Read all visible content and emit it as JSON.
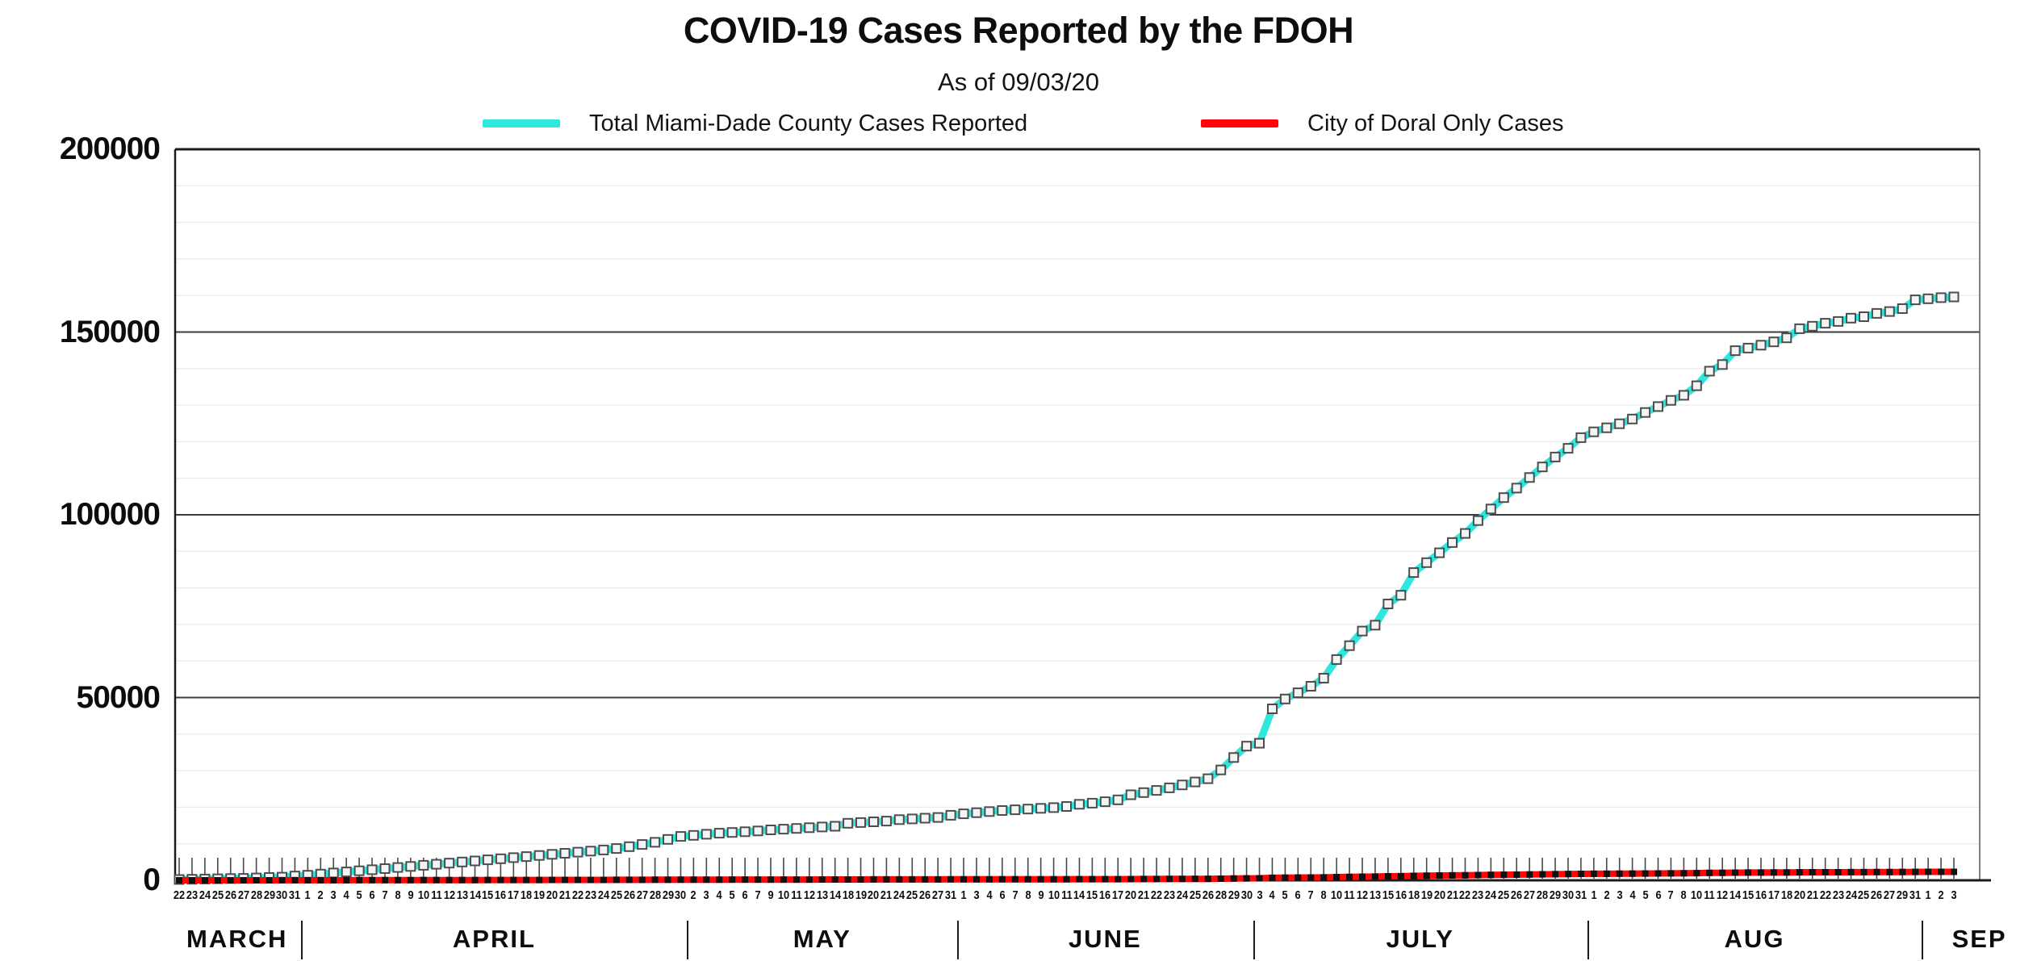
{
  "title": "COVID-19 Cases Reported by the FDOH",
  "subtitle": "As of 09/03/20",
  "legend": [
    {
      "label": "Total Miami-Dade County Cases Reported",
      "color": "#2ee8de"
    },
    {
      "label": "City of Doral Only Cases",
      "color": "#ff0505"
    }
  ],
  "chart_data": {
    "type": "line",
    "title": "COVID-19 Cases Reported by the FDOH",
    "subtitle": "As of 09/03/20",
    "xlabel": "",
    "ylabel": "",
    "ylim": [
      0,
      200000
    ],
    "yticks": [
      0,
      50000,
      100000,
      150000,
      200000
    ],
    "minor_grid_step": 10000,
    "grid": "on",
    "legend_position": "top",
    "months": [
      {
        "label": "MARCH",
        "days": [
          22,
          23,
          24,
          25,
          26,
          27,
          28,
          29,
          30,
          31
        ]
      },
      {
        "label": "APRIL",
        "days": [
          1,
          2,
          3,
          4,
          5,
          6,
          7,
          8,
          9,
          10,
          11,
          12,
          13,
          14,
          15,
          16,
          17,
          18,
          19,
          20,
          21,
          22,
          23,
          24,
          25,
          26,
          27,
          28,
          29,
          30
        ]
      },
      {
        "label": "MAY",
        "days": [
          2,
          3,
          4,
          5,
          6,
          7,
          9,
          10,
          11,
          12,
          13,
          14,
          18,
          19,
          20,
          21,
          24,
          25,
          26,
          27,
          31
        ]
      },
      {
        "label": "JUNE",
        "days": [
          1,
          3,
          4,
          6,
          7,
          8,
          9,
          10,
          11,
          14,
          15,
          16,
          17,
          20,
          21,
          22,
          23,
          24,
          25,
          26,
          28,
          29,
          30
        ]
      },
      {
        "label": "JULY",
        "days": [
          3,
          4,
          5,
          6,
          7,
          8,
          10,
          11,
          12,
          13,
          15,
          16,
          18,
          19,
          20,
          21,
          22,
          23,
          24,
          25,
          26,
          27,
          28,
          29,
          30,
          31
        ]
      },
      {
        "label": "AUG",
        "days": [
          1,
          2,
          3,
          4,
          5,
          6,
          7,
          8,
          10,
          11,
          12,
          14,
          15,
          16,
          17,
          18,
          20,
          21,
          22,
          23,
          24,
          25,
          26,
          27,
          29,
          31
        ]
      },
      {
        "label": "SEP",
        "days": [
          1,
          2,
          3
        ]
      }
    ],
    "series": [
      {
        "name": "Total Miami-Dade County Cases Reported",
        "color": "#2ee8de",
        "line_width": 9,
        "marker": "square",
        "marker_size": 11,
        "marker_fill": "#f4f4f4",
        "marker_stroke": "#4d4d4d",
        "values": [
          227,
          280,
          355,
          420,
          480,
          535,
          630,
          765,
          870,
          1180,
          1400,
          1700,
          2000,
          2300,
          2600,
          2900,
          3200,
          3500,
          3800,
          4100,
          4400,
          4700,
          5000,
          5300,
          5600,
          5900,
          6200,
          6500,
          6800,
          7100,
          7400,
          7700,
          8000,
          8300,
          8700,
          9200,
          9800,
          10400,
          11200,
          12000,
          12300,
          12600,
          12900,
          13100,
          13300,
          13500,
          13800,
          14000,
          14200,
          14400,
          14600,
          14800,
          15600,
          15800,
          16000,
          16200,
          16600,
          16800,
          17000,
          17200,
          17800,
          18200,
          18500,
          18800,
          19100,
          19300,
          19500,
          19700,
          19900,
          20200,
          20800,
          21100,
          21500,
          22000,
          23400,
          24000,
          24600,
          25300,
          26100,
          26900,
          27800,
          30200,
          33600,
          36700,
          37500,
          46900,
          49600,
          51300,
          53100,
          55300,
          60400,
          64200,
          68200,
          69800,
          75600,
          78000,
          84200,
          86900,
          89600,
          92400,
          94900,
          98400,
          101600,
          104700,
          107300,
          110200,
          113100,
          115800,
          118200,
          121100,
          122700,
          123800,
          124900,
          126200,
          128000,
          129600,
          131300,
          132700,
          135300,
          139300,
          141100,
          144900,
          145600,
          146400,
          147300,
          148400,
          150900,
          151600,
          152400,
          152900,
          153800,
          154200,
          155100,
          155600,
          156400,
          158800,
          159100,
          159400,
          159600
        ]
      },
      {
        "name": "City of Doral Only Cases",
        "color": "#ff0505",
        "line_width": 8,
        "marker": "square",
        "marker_size": 8,
        "marker_fill": "#111111",
        "marker_stroke": "none",
        "values": [
          3,
          4,
          5,
          6,
          7,
          8,
          9,
          11,
          13,
          17,
          20,
          25,
          29,
          33,
          38,
          42,
          46,
          51,
          55,
          59,
          64,
          68,
          73,
          77,
          81,
          86,
          90,
          94,
          99,
          103,
          107,
          112,
          116,
          120,
          126,
          133,
          142,
          151,
          162,
          174,
          178,
          183,
          187,
          190,
          193,
          196,
          200,
          203,
          206,
          209,
          212,
          215,
          226,
          229,
          232,
          235,
          241,
          244,
          247,
          249,
          258,
          264,
          268,
          273,
          277,
          280,
          283,
          286,
          289,
          293,
          302,
          306,
          312,
          319,
          339,
          348,
          357,
          367,
          378,
          390,
          403,
          438,
          487,
          532,
          544,
          680,
          719,
          744,
          770,
          802,
          876,
          931,
          989,
          1012,
          1096,
          1131,
          1221,
          1260,
          1299,
          1340,
          1376,
          1427,
          1473,
          1518,
          1556,
          1598,
          1640,
          1679,
          1714,
          1756,
          1779,
          1795,
          1811,
          1830,
          1856,
          1879,
          1904,
          1924,
          1962,
          2020,
          2046,
          2101,
          2111,
          2123,
          2136,
          2152,
          2188,
          2198,
          2210,
          2217,
          2230,
          2236,
          2249,
          2256,
          2268,
          2303,
          2307,
          2311,
          2314
        ]
      }
    ]
  }
}
